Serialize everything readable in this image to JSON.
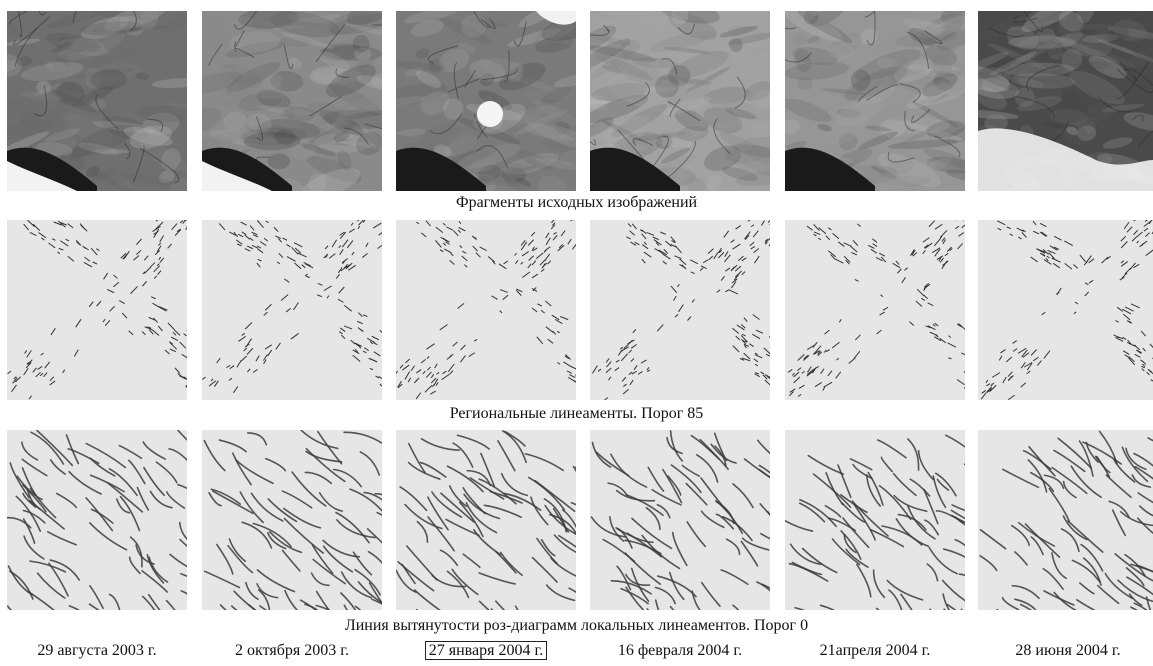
{
  "captions": {
    "satellite": "Фрагменты исходных изображений",
    "regional": "Региональные линеаменты. Порог 85",
    "local": "Линия вытянутости роз-диаграмм локальных линеаментов. Порог 0"
  },
  "dates": [
    {
      "label": "29 августа 2003 г.",
      "highlighted": false
    },
    {
      "label": "2 октября 2003 г.",
      "highlighted": false
    },
    {
      "label": "27 января 2004 г.",
      "highlighted": true
    },
    {
      "label": "16 февраля 2004 г.",
      "highlighted": false
    },
    {
      "label": "21апреля 2004 г.",
      "highlighted": false
    },
    {
      "label": "28 июня 2004 г.",
      "highlighted": false
    }
  ],
  "panel_tone": [
    "#6f6f6f",
    "#8a8a8a",
    "#7a7a7a",
    "#a2a2a2",
    "#969696",
    "#4a4a4a"
  ],
  "colors": {
    "panel_bg": "#e6e6e6",
    "line": "#333333",
    "sea": "#1a1a1a",
    "cloud": "#f2f2f2"
  }
}
